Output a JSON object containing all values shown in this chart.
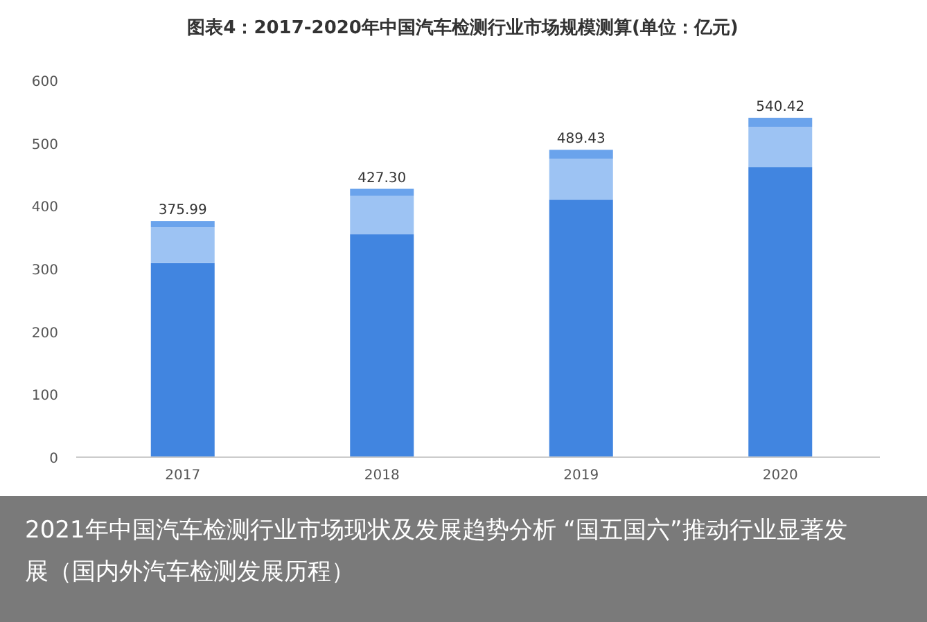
{
  "chart_data": {
    "type": "bar",
    "title": "图表4：2017-2020年中国汽车检测行业市场规模测算(单位：亿元)",
    "categories": [
      "2017",
      "2018",
      "2019",
      "2020"
    ],
    "stacked": true,
    "series": [
      {
        "color": "#4185e0",
        "values": [
          309,
          355,
          410,
          462
        ]
      },
      {
        "color": "#9dc3f3",
        "values": [
          57,
          61,
          65,
          64
        ]
      },
      {
        "color": "#6aa3ec",
        "values": [
          9.99,
          11.3,
          14.43,
          14.42
        ]
      }
    ],
    "totals": [
      "375.99",
      "427.30",
      "489.43",
      "540.42"
    ],
    "ylim": [
      0,
      600
    ],
    "yticks": [
      0,
      100,
      200,
      300,
      400,
      500,
      600
    ],
    "grid": false,
    "annotations": [
      "2021年中国汽车检测行业市场现状及发展趋势分析 “国五国六”推动行业显著发展（国内外汽车检测发展历程）"
    ]
  }
}
